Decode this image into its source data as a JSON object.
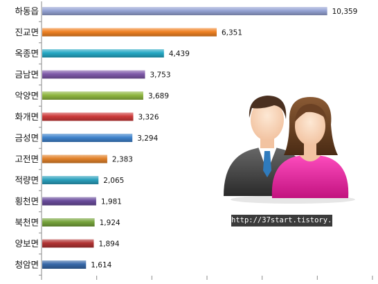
{
  "chart_data": {
    "type": "bar",
    "orientation": "horizontal",
    "categories": [
      "하동읍",
      "진교면",
      "옥종면",
      "금남면",
      "악양면",
      "화개면",
      "금성면",
      "고전면",
      "적량면",
      "횡천면",
      "북천면",
      "양보면",
      "청암면"
    ],
    "values": [
      10359,
      6351,
      4439,
      3753,
      3689,
      3326,
      3294,
      2383,
      2065,
      1981,
      1924,
      1894,
      1614
    ],
    "value_labels": [
      "10,359",
      "6,351",
      "4,439",
      "3,753",
      "3,689",
      "3,326",
      "3,294",
      "2,383",
      "2,065",
      "1,981",
      "1,924",
      "1,894",
      "1,614"
    ],
    "colors": [
      "#95a3d4",
      "#f08224",
      "#25a8c4",
      "#7e58a8",
      "#8fb640",
      "#cd3b3b",
      "#3f83cc",
      "#e2822a",
      "#2ba0bd",
      "#6a4c9c",
      "#77a43c",
      "#b03232",
      "#3768a8"
    ],
    "xlim": [
      0,
      12000
    ],
    "x_ticks": [
      0,
      2000,
      4000,
      6000,
      8000,
      10000,
      12000
    ],
    "grid": false,
    "title": "",
    "xlabel": "",
    "ylabel": ""
  },
  "watermark": "http://37start.tistory.com",
  "illustration": "people-icon"
}
